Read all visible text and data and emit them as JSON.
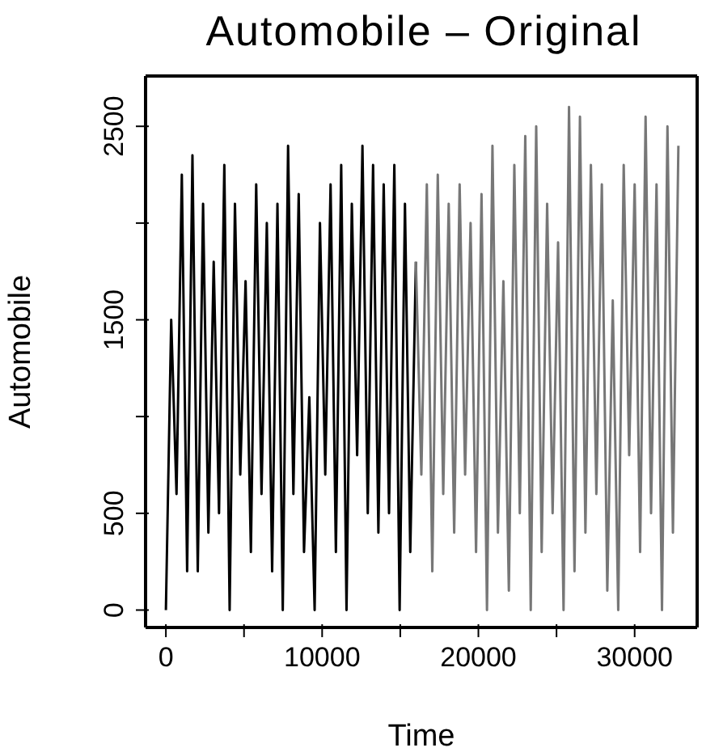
{
  "chart_data": {
    "type": "line",
    "title": "Automobile – Original",
    "xlabel": "Time",
    "ylabel": "Automobile",
    "xlim": [
      -1300,
      34000
    ],
    "xticks": [
      0,
      {
        "value": 5000,
        "label": null
      },
      10000,
      {
        "value": 15000,
        "label": null
      },
      20000,
      {
        "value": 25000,
        "label": null
      },
      30000
    ],
    "ylim": [
      -90,
      2760
    ],
    "yticks": [
      0,
      500,
      {
        "value": 1000,
        "label": null
      },
      1500,
      {
        "value": 2000,
        "label": null
      },
      2500
    ],
    "grid": false,
    "marker": "none",
    "series": [
      {
        "color": "#000000",
        "x": [
          0,
          340,
          680,
          1020,
          1360,
          1700,
          2040,
          2380,
          2720,
          3060,
          3400,
          3740,
          4080,
          4420,
          4760,
          5100,
          5440,
          5780,
          6120,
          6460,
          6800,
          7140,
          7480,
          7820,
          8160,
          8500,
          8840,
          9180,
          9520,
          9860,
          10200,
          10540,
          10880,
          11220,
          11560,
          11900,
          12240,
          12580,
          12920,
          13260,
          13600,
          13940,
          14280,
          14620,
          14960,
          15300,
          15640,
          16000
        ],
        "values": [
          0,
          1500,
          600,
          2250,
          200,
          2350,
          200,
          2100,
          400,
          1800,
          500,
          2300,
          0,
          2100,
          700,
          1700,
          300,
          2200,
          600,
          2000,
          200,
          2100,
          0,
          2400,
          600,
          2150,
          300,
          1100,
          0,
          2000,
          700,
          2200,
          300,
          2300,
          0,
          2100,
          800,
          2400,
          500,
          2300,
          400,
          2200,
          500,
          2300,
          0,
          2100,
          300,
          1800
        ]
      },
      {
        "color": "#777777",
        "x": [
          16000,
          16350,
          16700,
          17050,
          17400,
          17750,
          18100,
          18450,
          18800,
          19150,
          19500,
          19850,
          20200,
          20550,
          20900,
          21250,
          21600,
          21950,
          22300,
          22650,
          23000,
          23350,
          23700,
          24050,
          24400,
          24750,
          25100,
          25450,
          25800,
          26150,
          26500,
          26850,
          27200,
          27550,
          27900,
          28250,
          28600,
          28950,
          29300,
          29650,
          30000,
          30350,
          30700,
          31050,
          31400,
          31750,
          32100,
          32450,
          32800
        ],
        "values": [
          1800,
          700,
          2200,
          200,
          2250,
          600,
          2100,
          400,
          2200,
          700,
          2000,
          300,
          2150,
          0,
          2400,
          400,
          1700,
          100,
          2300,
          500,
          2450,
          0,
          2500,
          300,
          2100,
          500,
          1900,
          0,
          2600,
          200,
          2550,
          400,
          2300,
          600,
          2200,
          100,
          1600,
          0,
          2300,
          800,
          2200,
          300,
          2550,
          500,
          2200,
          0,
          2500,
          400,
          2400
        ]
      }
    ]
  }
}
